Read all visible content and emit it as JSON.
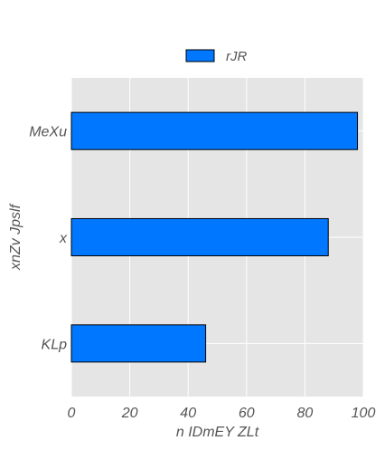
{
  "chart_data": {
    "type": "bar",
    "orientation": "horizontal",
    "categories": [
      "KLp",
      "x",
      "MeXu"
    ],
    "series": [
      {
        "name": "rJR",
        "values": [
          46,
          88,
          98
        ]
      }
    ],
    "xlabel": "n IDmEY ZLt",
    "ylabel": "xnZv Jpslf",
    "xlim": [
      0,
      100
    ],
    "xticks": [
      "0",
      "20",
      "40",
      "60",
      "80",
      "100"
    ],
    "grid": true,
    "legend_position": "top-center",
    "colors": {
      "bar": "#0077ff",
      "bar_edge": "#000000",
      "plot_background": "#e5e5e5",
      "grid": "#ffffff",
      "text": "#555555"
    }
  }
}
